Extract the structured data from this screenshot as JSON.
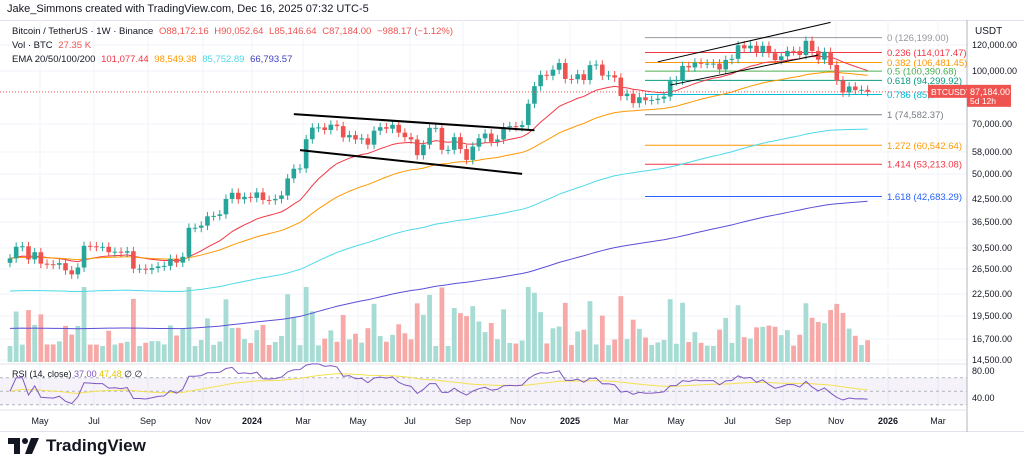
{
  "credit": "Jake_Simmons created with TradingView.com, Dec 16, 2025 07:32 UTC-5",
  "legend": {
    "symbol": "Bitcoin / TetherUS · 1W · Binance",
    "open": "O88,172.16",
    "high": "H90,052.64",
    "low": "L85,146.64",
    "close": "C87,184.00",
    "change": "−988.17 (−1.12%)",
    "vol_label": "Vol · BTC",
    "vol_value": "27.35 K",
    "ema_label": "EMA 20/50/100/200",
    "ema20": "101,077.44",
    "ema50": "98,549.38",
    "ema100": "85,752.89",
    "ema200": "66,793.57"
  },
  "rsi": {
    "label": "RSI (14, close)",
    "value": "37.00",
    "ma": "47.48",
    "sym1": "∅",
    "sym2": "∅",
    "ticks": [
      "80.00",
      "40.00"
    ]
  },
  "axis": {
    "currency": "USDT",
    "price_ticks": [
      "120,000.00",
      "100,000.00",
      "70,000.00",
      "58,000.00",
      "50,000.00",
      "42,500.00",
      "36,500.00",
      "30,500.00",
      "26,500.00",
      "22,500.00",
      "19,500.00",
      "16,700.00",
      "14,500.00"
    ],
    "last_price": "87,184.00",
    "countdown": "5d 12h",
    "symbol_tag": "BTCUSDT"
  },
  "time_ticks": [
    "May",
    "Jul",
    "Sep",
    "Nov",
    "2024",
    "Mar",
    "May",
    "Jul",
    "Sep",
    "Nov",
    "2025",
    "Mar",
    "May",
    "Jul",
    "Sep",
    "Nov",
    "2026",
    "Mar"
  ],
  "brand": "TradingView",
  "colors": {
    "up": "#26a69a",
    "down": "#ef5350",
    "ema20": "#f23645",
    "ema50": "#ff9800",
    "ema100": "#4dd9e8",
    "ema200": "#5b4fd6",
    "rsi": "#7e57c2",
    "rsi_ma": "#f5e14f"
  },
  "chart_data": {
    "type": "candlestick",
    "interval": "1W",
    "scale": "log",
    "start_week": "2023-04-03",
    "closes": [
      28000,
      30300,
      30400,
      27800,
      29200,
      27000,
      26900,
      26800,
      27100,
      25800,
      25100,
      26300,
      30500,
      30400,
      30300,
      30300,
      29200,
      29300,
      29100,
      29400,
      26100,
      26100,
      25900,
      26200,
      26500,
      26600,
      27900,
      27200,
      28300,
      34500,
      34500,
      35000,
      37300,
      37400,
      37800,
      42000,
      43800,
      41900,
      42600,
      42300,
      43900,
      41700,
      41600,
      42000,
      43000,
      48300,
      51600,
      51700,
      63100,
      68300,
      68400,
      67200,
      69700,
      69000,
      63900,
      64900,
      63000,
      63500,
      60800,
      66900,
      68500,
      67800,
      69600,
      66000,
      64000,
      63000,
      56600,
      60800,
      68200,
      68200,
      58700,
      58700,
      64000,
      59000,
      54800,
      60000,
      63500,
      65600,
      62000,
      63000,
      68500,
      69000,
      68600,
      69500,
      80400,
      90600,
      97900,
      97300,
      101400,
      106100,
      95200,
      95000,
      98300,
      94500,
      104600,
      105000,
      97400,
      97600,
      96100,
      84700,
      86100,
      80700,
      84000,
      82300,
      82500,
      83200,
      84400,
      93800,
      94300,
      104000,
      103000,
      106400,
      105600,
      105700,
      105700,
      101600,
      108400,
      109200,
      119800,
      117300,
      119400,
      114100,
      119300,
      113500,
      108300,
      111100,
      115300,
      115200,
      112100,
      123500,
      115200,
      108600,
      114500,
      104700,
      94200,
      86800,
      90400,
      88200,
      88400,
      87184
    ],
    "fib_levels": [
      {
        "ratio": "0",
        "price": 126199.0,
        "label": "0 (126,199.00)",
        "color": "#9598a1"
      },
      {
        "ratio": "0.236",
        "price": 114017.47,
        "label": "0.236 (114,017.47)",
        "color": "#f23645"
      },
      {
        "ratio": "0.382",
        "price": 106481.45,
        "label": "0.382 (106,481.45)",
        "color": "#ff9800"
      },
      {
        "ratio": "0.5",
        "price": 100390.68,
        "label": "0.5 (100,390.68)",
        "color": "#4caf50"
      },
      {
        "ratio": "0.618",
        "price": 94299.92,
        "label": "0.618 (94,299.92)",
        "color": "#089981"
      },
      {
        "ratio": "0.786",
        "price": 85600,
        "label": "0.786 (85,6",
        "color": "#00bcd4"
      },
      {
        "ratio": "1",
        "price": 74582.37,
        "label": "1 (74,582.37)",
        "color": "#787b86"
      },
      {
        "ratio": "1.272",
        "price": 60542.64,
        "label": "1.272 (60,542.64)",
        "color": "#ff9800"
      },
      {
        "ratio": "1.414",
        "price": 53213.08,
        "label": "1.414 (53,213.08)",
        "color": "#f23645"
      },
      {
        "ratio": "1.618",
        "price": 42683.29,
        "label": "1.618 (42,683.29)",
        "color": "#2962ff"
      }
    ],
    "trendlines": [
      {
        "from": [
          "2024-02-19",
          74900
        ],
        "to": [
          "2024-11-18",
          67100
        ],
        "color": "#000000"
      },
      {
        "from": [
          "2024-02-26",
          58600
        ],
        "to": [
          "2024-11-04",
          49800
        ],
        "color": "#000000"
      },
      {
        "from": [
          "2025-04-07",
          107000
        ],
        "to": [
          "2025-10-20",
          140000
        ],
        "color": "#000000"
      },
      {
        "from": [
          "2025-04-21",
          91300
        ],
        "to": [
          "2025-10-06",
          112100
        ],
        "color": "#000000"
      }
    ]
  }
}
